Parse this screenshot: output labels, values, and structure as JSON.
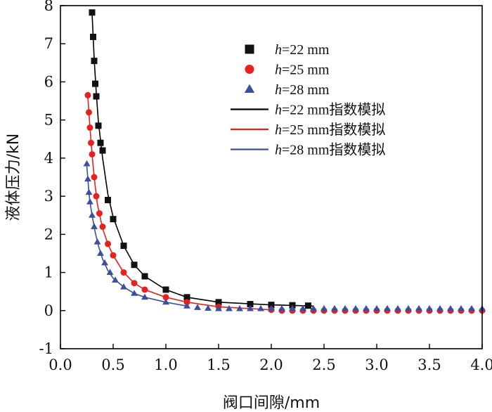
{
  "chart_data": {
    "type": "scatter",
    "title": "",
    "xlabel": "阀口间隙/mm",
    "ylabel": "液体压力/kN",
    "xlim": [
      0.0,
      4.0
    ],
    "ylim": [
      -1,
      8
    ],
    "x_ticks": [
      "0.0",
      "0.5",
      "1.0",
      "1.5",
      "2.0",
      "2.5",
      "3.0",
      "3.5",
      "4.0"
    ],
    "y_ticks": [
      "-1",
      "0",
      "1",
      "2",
      "3",
      "4",
      "5",
      "6",
      "7",
      "8"
    ],
    "grid": false,
    "legend_position": "top-right",
    "series": [
      {
        "name_var": "h",
        "name_rest": "=22 mm",
        "kind": "points",
        "marker": "square",
        "color": "#111111",
        "x": [
          0.3,
          0.31,
          0.32,
          0.33,
          0.34,
          0.36,
          0.38,
          0.4,
          0.45,
          0.5,
          0.6,
          0.7,
          0.8,
          1.0,
          1.2,
          1.5,
          1.8,
          2.0,
          2.2,
          2.35
        ],
        "y": [
          7.82,
          7.18,
          6.55,
          5.95,
          5.62,
          4.85,
          4.4,
          4.2,
          2.9,
          2.4,
          1.7,
          1.2,
          0.9,
          0.55,
          0.35,
          0.22,
          0.17,
          0.15,
          0.14,
          0.13
        ]
      },
      {
        "name_var": "h",
        "name_rest": "=25 mm",
        "kind": "points",
        "marker": "circle",
        "color": "#e8201e",
        "x": [
          0.26,
          0.27,
          0.28,
          0.29,
          0.3,
          0.32,
          0.34,
          0.37,
          0.4,
          0.45,
          0.5,
          0.6,
          0.7,
          0.8,
          1.0,
          1.2,
          1.5,
          2.0
        ],
        "y": [
          5.65,
          5.2,
          4.8,
          4.4,
          4.1,
          3.5,
          3.0,
          2.55,
          2.2,
          1.75,
          1.45,
          1.0,
          0.72,
          0.55,
          0.35,
          0.22,
          0.1,
          0.02
        ]
      },
      {
        "name_var": "h",
        "name_rest": "=28 mm",
        "kind": "points",
        "marker": "triangle",
        "color": "#3b4ea0",
        "x": [
          0.25,
          0.26,
          0.27,
          0.28,
          0.3,
          0.32,
          0.35,
          0.38,
          0.42,
          0.47,
          0.52,
          0.6,
          0.7,
          0.8,
          1.0,
          1.2
        ],
        "y": [
          3.85,
          3.45,
          3.1,
          2.85,
          2.5,
          2.2,
          1.8,
          1.5,
          1.25,
          1.0,
          0.8,
          0.62,
          0.45,
          0.35,
          0.22,
          0.12
        ]
      },
      {
        "name_var": "h",
        "name_rest": "=22 mm指数模拟",
        "kind": "line",
        "color": "#000000",
        "x": [
          0.3,
          0.31,
          0.32,
          0.34,
          0.36,
          0.4,
          0.45,
          0.5,
          0.6,
          0.7,
          0.8,
          1.0,
          1.2,
          1.5,
          2.0,
          2.4
        ],
        "y": [
          7.8,
          7.2,
          6.6,
          5.7,
          4.95,
          4.0,
          3.05,
          2.45,
          1.7,
          1.2,
          0.9,
          0.55,
          0.35,
          0.22,
          0.15,
          0.12
        ]
      },
      {
        "name_var": "h",
        "name_rest": "=25 mm指数模拟",
        "kind": "line",
        "color": "#e8201e",
        "x": [
          0.26,
          0.27,
          0.28,
          0.3,
          0.32,
          0.35,
          0.4,
          0.45,
          0.5,
          0.6,
          0.7,
          0.8,
          1.0,
          1.2,
          1.5,
          2.0
        ],
        "y": [
          5.6,
          5.2,
          4.8,
          4.1,
          3.5,
          2.8,
          2.15,
          1.75,
          1.45,
          1.0,
          0.72,
          0.55,
          0.35,
          0.22,
          0.1,
          0.02
        ]
      },
      {
        "name_var": "h",
        "name_rest": "=28 mm指数模拟",
        "kind": "line",
        "color": "#3b4ea0",
        "x": [
          0.25,
          0.26,
          0.27,
          0.28,
          0.3,
          0.33,
          0.36,
          0.4,
          0.45,
          0.5,
          0.6,
          0.7,
          0.8,
          1.0,
          1.2
        ],
        "y": [
          3.8,
          3.45,
          3.1,
          2.85,
          2.5,
          2.05,
          1.7,
          1.35,
          1.05,
          0.85,
          0.62,
          0.45,
          0.35,
          0.22,
          0.12
        ]
      },
      {
        "name_var": "",
        "name_rest": "",
        "kind": "points",
        "marker": "circle",
        "color": "#e8201e",
        "x": [
          2.1,
          2.2,
          2.3,
          2.4,
          2.5,
          2.6,
          2.7,
          2.8,
          2.9,
          3.0,
          3.1,
          3.2,
          3.3,
          3.4,
          3.5,
          3.6,
          3.7,
          3.8,
          3.9,
          4.0
        ],
        "y": [
          0.0,
          0.0,
          0.0,
          0.0,
          0.0,
          0.0,
          0.0,
          0.0,
          0.0,
          0.0,
          0.0,
          0.0,
          0.0,
          0.0,
          0.0,
          0.0,
          0.0,
          0.0,
          0.0,
          0.0
        ]
      },
      {
        "name_var": "",
        "name_rest": "",
        "kind": "points",
        "marker": "triangle",
        "color": "#3b4ea0",
        "x": [
          1.3,
          1.4,
          1.5,
          1.6,
          1.7,
          1.8,
          1.9,
          2.0,
          2.1,
          2.2,
          2.3,
          2.4,
          2.5,
          2.6,
          2.7,
          2.8,
          2.9,
          3.0,
          3.1,
          3.2,
          3.3,
          3.4,
          3.5,
          3.6,
          3.7,
          3.8,
          3.9,
          4.0
        ],
        "y": [
          0.08,
          0.06,
          0.05,
          0.05,
          0.05,
          0.05,
          0.05,
          0.05,
          0.05,
          0.05,
          0.05,
          0.05,
          0.05,
          0.05,
          0.05,
          0.05,
          0.05,
          0.05,
          0.05,
          0.05,
          0.05,
          0.05,
          0.05,
          0.05,
          0.05,
          0.05,
          0.05,
          0.05
        ]
      }
    ]
  }
}
